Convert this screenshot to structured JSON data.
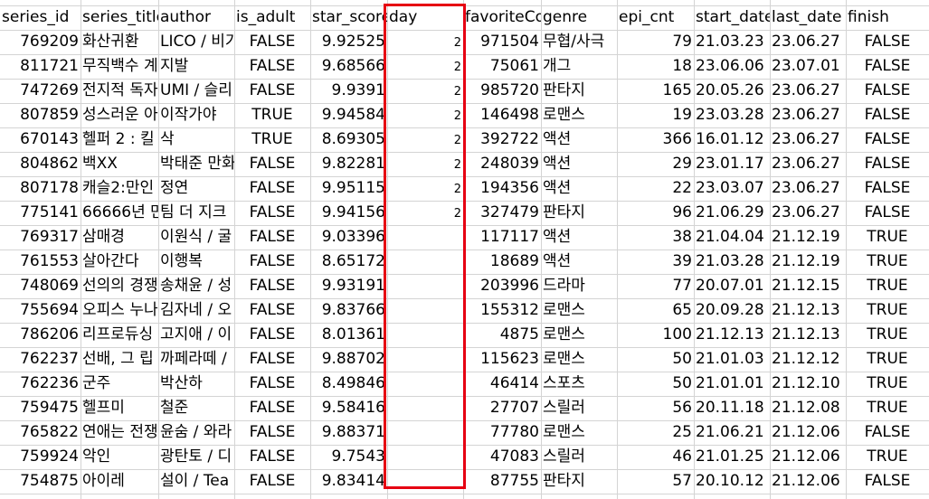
{
  "headers": [
    "series_id",
    "series_title",
    "author",
    "is_adult",
    "star_score",
    "day",
    "favoriteCount",
    "genre",
    "epi_cnt",
    "start_date",
    "last_date",
    "finish"
  ],
  "rows": [
    [
      "769209",
      "화산귀환",
      "LICO / 비가",
      "FALSE",
      "9.92525",
      "2",
      "971504",
      "무협/사극",
      "79",
      "21.03.23",
      "23.06.27",
      "FALSE"
    ],
    [
      "811721",
      "무직백수 계",
      "지발",
      "FALSE",
      "9.68566",
      "2",
      "75061",
      "개그",
      "18",
      "23.06.06",
      "23.07.01",
      "FALSE"
    ],
    [
      "747269",
      "전지적 독자",
      "UMI / 슬리",
      "FALSE",
      "9.9391",
      "2",
      "985720",
      "판타지",
      "165",
      "20.05.26",
      "23.06.27",
      "FALSE"
    ],
    [
      "807859",
      "성스러운 아",
      "이작가야",
      "TRUE",
      "9.94584",
      "2",
      "146498",
      "로맨스",
      "19",
      "23.03.28",
      "23.06.27",
      "FALSE"
    ],
    [
      "670143",
      "헬퍼 2 : 킬",
      "삭",
      "TRUE",
      "8.69305",
      "2",
      "392722",
      "액션",
      "366",
      "16.01.12",
      "23.06.27",
      "FALSE"
    ],
    [
      "804862",
      "백XX",
      "박태준 만화",
      "FALSE",
      "9.82281",
      "2",
      "248039",
      "액션",
      "29",
      "23.01.17",
      "23.06.27",
      "FALSE"
    ],
    [
      "807178",
      "캐슬2:만인",
      "정연",
      "FALSE",
      "9.95115",
      "2",
      "194356",
      "액션",
      "22",
      "23.03.07",
      "23.06.27",
      "FALSE"
    ],
    [
      "775141",
      "66666년 만",
      "팀 더 지크",
      "FALSE",
      "9.94156",
      "2",
      "327479",
      "판타지",
      "96",
      "21.06.29",
      "23.06.27",
      "FALSE"
    ],
    [
      "769317",
      "삼매경",
      "이원식 / 굴",
      "FALSE",
      "9.03396",
      "",
      "117117",
      "액션",
      "38",
      "21.04.04",
      "21.12.19",
      "TRUE"
    ],
    [
      "761553",
      "살아간다",
      "이행복",
      "FALSE",
      "8.65172",
      "",
      "18689",
      "액션",
      "39",
      "21.03.28",
      "21.12.19",
      "TRUE"
    ],
    [
      "748069",
      "선의의 경쟁",
      "송채윤 / 성",
      "FALSE",
      "9.93191",
      "",
      "203996",
      "드라마",
      "77",
      "20.07.01",
      "21.12.15",
      "TRUE"
    ],
    [
      "755694",
      "오피스 누나",
      "김자네 / 오",
      "FALSE",
      "9.83766",
      "",
      "155312",
      "로맨스",
      "65",
      "20.09.28",
      "21.12.13",
      "TRUE"
    ],
    [
      "786206",
      "리프로듀싱",
      "고지애 / 이",
      "FALSE",
      "8.01361",
      "",
      "4875",
      "로맨스",
      "100",
      "21.12.13",
      "21.12.13",
      "TRUE"
    ],
    [
      "762237",
      "선배, 그 립",
      "까페라떼 /",
      "FALSE",
      "9.88702",
      "",
      "115623",
      "로맨스",
      "50",
      "21.01.03",
      "21.12.12",
      "TRUE"
    ],
    [
      "762236",
      "군주",
      "박산하",
      "FALSE",
      "8.49846",
      "",
      "46414",
      "스포츠",
      "50",
      "21.01.01",
      "21.12.10",
      "TRUE"
    ],
    [
      "759475",
      "헬프미",
      "철준",
      "FALSE",
      "9.58416",
      "",
      "27707",
      "스릴러",
      "56",
      "20.11.18",
      "21.12.08",
      "TRUE"
    ],
    [
      "765822",
      "연애는 전쟁",
      "윤숨 / 와라",
      "FALSE",
      "9.88371",
      "",
      "77780",
      "로맨스",
      "25",
      "21.06.21",
      "21.12.06",
      "FALSE"
    ],
    [
      "759924",
      "악인",
      "광탄토 / 디",
      "FALSE",
      "9.7543",
      "",
      "47083",
      "스릴러",
      "46",
      "21.01.25",
      "21.12.06",
      "TRUE"
    ],
    [
      "754875",
      "아이레",
      "설이 / Tea",
      "FALSE",
      "9.83414",
      "",
      "87755",
      "판타지",
      "57",
      "20.10.12",
      "21.12.06",
      "FALSE"
    ]
  ],
  "highlight_color": "#e60012"
}
